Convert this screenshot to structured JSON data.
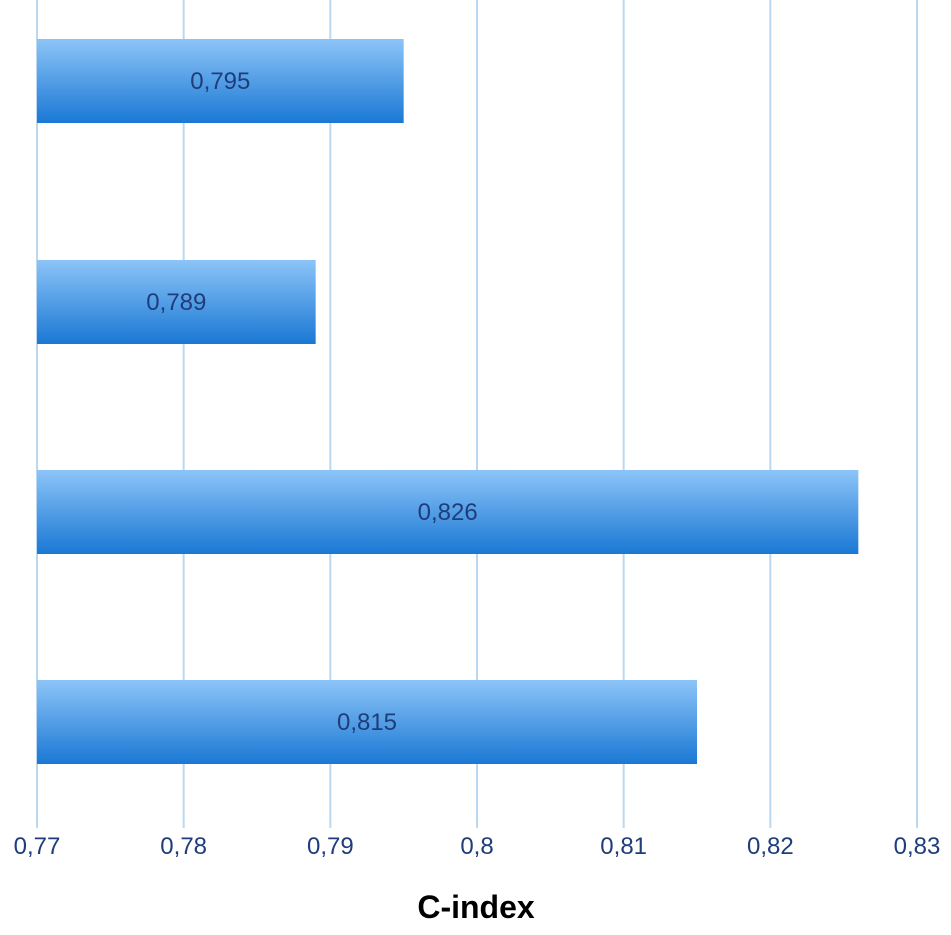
{
  "chart_data": {
    "type": "bar",
    "orientation": "horizontal",
    "title": "",
    "xlabel": "C-index",
    "ylabel": "",
    "xlim": [
      0.77,
      0.83
    ],
    "xticks": [
      0.77,
      0.78,
      0.79,
      0.8,
      0.81,
      0.82,
      0.83
    ],
    "xtick_labels": [
      "0,77",
      "0,78",
      "0,79",
      "0,8",
      "0,81",
      "0,82",
      "0,83"
    ],
    "series": [
      {
        "values": [
          0.795,
          0.789,
          0.826,
          0.815
        ],
        "data_labels": [
          "0,795",
          "0,789",
          "0,826",
          "0,815"
        ]
      }
    ],
    "grid": true,
    "legend": "none",
    "colors": {
      "bar_top": "#8cc4f8",
      "bar_bottom": "#1a78d4",
      "gridline": "#bcd8f0",
      "tick_text": "#1f3d7a",
      "label_text": "#1f3d7a"
    }
  }
}
